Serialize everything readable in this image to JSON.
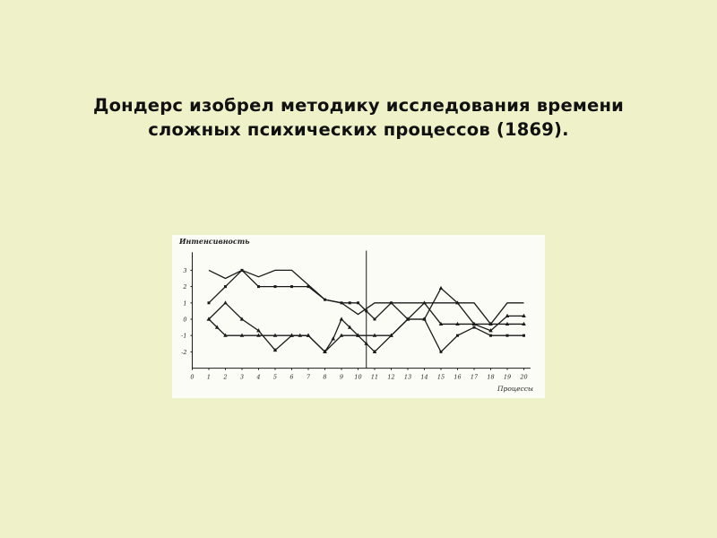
{
  "slide": {
    "title_line1": "Дондерс изобрел методику исследования времени",
    "title_line2": "сложных психических процессов (1869)."
  },
  "chart_data": {
    "type": "line",
    "title": "",
    "xlabel": "Процессы",
    "ylabel": "Интенсивность",
    "xlim": [
      0,
      20
    ],
    "ylim": [
      -3,
      4
    ],
    "x_ticks": [
      0,
      1,
      2,
      3,
      4,
      5,
      6,
      7,
      8,
      9,
      10,
      11,
      12,
      13,
      14,
      15,
      16,
      17,
      18,
      19,
      20
    ],
    "y_ticks": [
      3,
      2,
      1,
      0,
      -1,
      -2
    ],
    "divider_x": 10.5,
    "grid": false,
    "line_color": "#1a1a1a",
    "series": [
      {
        "marker": "none",
        "points": [
          [
            1,
            3
          ],
          [
            2,
            2.5
          ],
          [
            3,
            3
          ],
          [
            4,
            2.6
          ],
          [
            5,
            3
          ],
          [
            6,
            3
          ],
          [
            7,
            2.1
          ],
          [
            8,
            1.2
          ],
          [
            9,
            1
          ],
          [
            10,
            0.3
          ],
          [
            11,
            1
          ],
          [
            17,
            1
          ],
          [
            18,
            -0.3
          ],
          [
            19,
            1
          ],
          [
            20,
            1
          ]
        ]
      },
      {
        "marker": "square",
        "points": [
          [
            1,
            1
          ],
          [
            2,
            2
          ],
          [
            3,
            3
          ],
          [
            4,
            2
          ],
          [
            5,
            2
          ],
          [
            6,
            2
          ],
          [
            7,
            2
          ],
          [
            8,
            1.2
          ],
          [
            9,
            1
          ],
          [
            9.5,
            1
          ],
          [
            10,
            1
          ],
          [
            10.5,
            0.5
          ],
          [
            11,
            0
          ],
          [
            12,
            1
          ],
          [
            13,
            0
          ],
          [
            14,
            0
          ],
          [
            15,
            -2
          ],
          [
            16,
            -1
          ],
          [
            17,
            -0.5
          ],
          [
            18,
            -1
          ],
          [
            19,
            -1
          ],
          [
            20,
            -1
          ]
        ]
      },
      {
        "marker": "triangle",
        "points": [
          [
            1,
            0
          ],
          [
            1.5,
            -0.5
          ],
          [
            2,
            -1
          ],
          [
            3,
            -1
          ],
          [
            4,
            -1
          ],
          [
            5,
            -1
          ],
          [
            6,
            -1
          ],
          [
            6.5,
            -1
          ],
          [
            7,
            -1
          ],
          [
            8,
            -2
          ],
          [
            8.5,
            -1.2
          ],
          [
            9,
            0
          ],
          [
            9.5,
            -0.5
          ],
          [
            10,
            -1
          ],
          [
            10.5,
            -1.5
          ],
          [
            11,
            -2
          ],
          [
            12,
            -1
          ],
          [
            13,
            0
          ],
          [
            14,
            1
          ],
          [
            15,
            -0.3
          ],
          [
            16,
            -0.3
          ],
          [
            17,
            -0.3
          ],
          [
            18,
            -0.3
          ],
          [
            19,
            -0.3
          ],
          [
            20,
            -0.3
          ]
        ]
      },
      {
        "marker": "triangle",
        "points": [
          [
            1,
            0
          ],
          [
            2,
            1
          ],
          [
            3,
            0
          ],
          [
            4,
            -0.7
          ],
          [
            5,
            -1.9
          ],
          [
            6,
            -1
          ],
          [
            7,
            -1
          ],
          [
            8,
            -2
          ],
          [
            9,
            -1
          ],
          [
            10,
            -1
          ],
          [
            11,
            -1
          ],
          [
            12,
            -1
          ],
          [
            13,
            0
          ],
          [
            14,
            0
          ],
          [
            15,
            1.9
          ],
          [
            16,
            1
          ],
          [
            17,
            -0.3
          ],
          [
            18,
            -0.7
          ],
          [
            19,
            0.2
          ],
          [
            20,
            0.2
          ]
        ]
      }
    ]
  }
}
